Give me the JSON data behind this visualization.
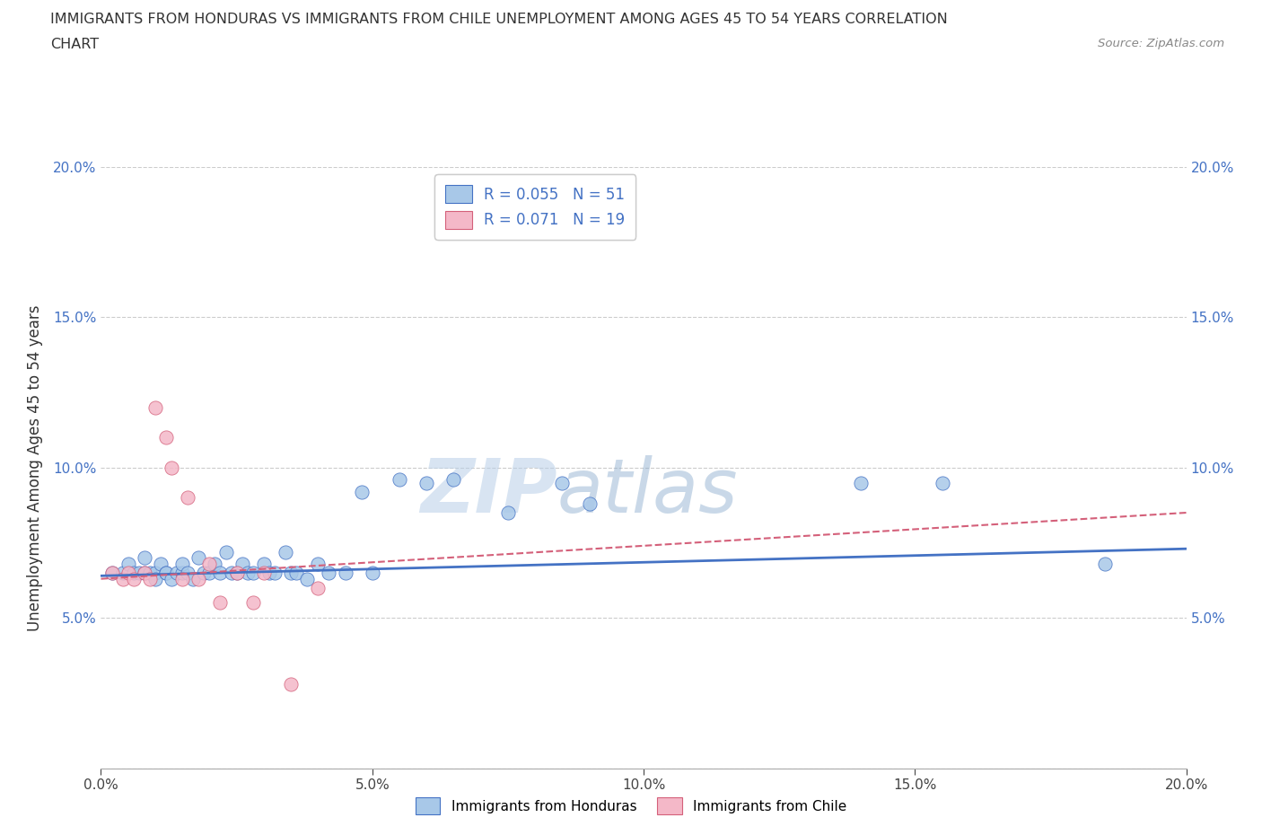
{
  "title_line1": "IMMIGRANTS FROM HONDURAS VS IMMIGRANTS FROM CHILE UNEMPLOYMENT AMONG AGES 45 TO 54 YEARS CORRELATION",
  "title_line2": "CHART",
  "source_text": "Source: ZipAtlas.com",
  "ylabel": "Unemployment Among Ages 45 to 54 years",
  "xlim": [
    0.0,
    0.2
  ],
  "ylim": [
    0.0,
    0.2
  ],
  "xticks": [
    0.0,
    0.05,
    0.1,
    0.15,
    0.2
  ],
  "yticks": [
    0.0,
    0.05,
    0.1,
    0.15,
    0.2
  ],
  "xticklabels": [
    "0.0%",
    "5.0%",
    "10.0%",
    "15.0%",
    "20.0%"
  ],
  "yticklabels": [
    "",
    "5.0%",
    "10.0%",
    "15.0%",
    "20.0%"
  ],
  "legend_r1": "R = 0.055",
  "legend_n1": "N = 51",
  "legend_r2": "R = 0.071",
  "legend_n2": "N = 19",
  "color_honduras": "#a8c8e8",
  "color_chile": "#f4b8c8",
  "line_color_honduras": "#4472c4",
  "line_color_chile": "#d4607a",
  "watermark_zip": "ZIP",
  "watermark_atlas": "atlas",
  "honduras_x": [
    0.002,
    0.004,
    0.005,
    0.006,
    0.007,
    0.008,
    0.008,
    0.009,
    0.01,
    0.01,
    0.011,
    0.012,
    0.012,
    0.013,
    0.014,
    0.015,
    0.015,
    0.016,
    0.017,
    0.018,
    0.019,
    0.02,
    0.021,
    0.022,
    0.023,
    0.024,
    0.025,
    0.026,
    0.027,
    0.028,
    0.03,
    0.031,
    0.032,
    0.034,
    0.035,
    0.036,
    0.038,
    0.04,
    0.042,
    0.045,
    0.048,
    0.05,
    0.055,
    0.06,
    0.065,
    0.075,
    0.085,
    0.09,
    0.14,
    0.155,
    0.185
  ],
  "honduras_y": [
    0.065,
    0.065,
    0.068,
    0.065,
    0.065,
    0.065,
    0.07,
    0.065,
    0.065,
    0.063,
    0.068,
    0.065,
    0.065,
    0.063,
    0.065,
    0.065,
    0.068,
    0.065,
    0.063,
    0.07,
    0.065,
    0.065,
    0.068,
    0.065,
    0.072,
    0.065,
    0.065,
    0.068,
    0.065,
    0.065,
    0.068,
    0.065,
    0.065,
    0.072,
    0.065,
    0.065,
    0.063,
    0.068,
    0.065,
    0.065,
    0.092,
    0.065,
    0.096,
    0.095,
    0.096,
    0.085,
    0.095,
    0.088,
    0.095,
    0.095,
    0.068
  ],
  "chile_x": [
    0.002,
    0.004,
    0.005,
    0.006,
    0.008,
    0.009,
    0.01,
    0.012,
    0.013,
    0.015,
    0.016,
    0.018,
    0.02,
    0.022,
    0.025,
    0.028,
    0.03,
    0.035,
    0.04
  ],
  "chile_y": [
    0.065,
    0.063,
    0.065,
    0.063,
    0.065,
    0.063,
    0.12,
    0.11,
    0.1,
    0.063,
    0.09,
    0.063,
    0.068,
    0.055,
    0.065,
    0.055,
    0.065,
    0.028,
    0.06
  ],
  "h_trend_x0": 0.0,
  "h_trend_x1": 0.2,
  "h_trend_y0": 0.064,
  "h_trend_y1": 0.073,
  "c_trend_x0": 0.0,
  "c_trend_x1": 0.2,
  "c_trend_y0": 0.063,
  "c_trend_y1": 0.085
}
